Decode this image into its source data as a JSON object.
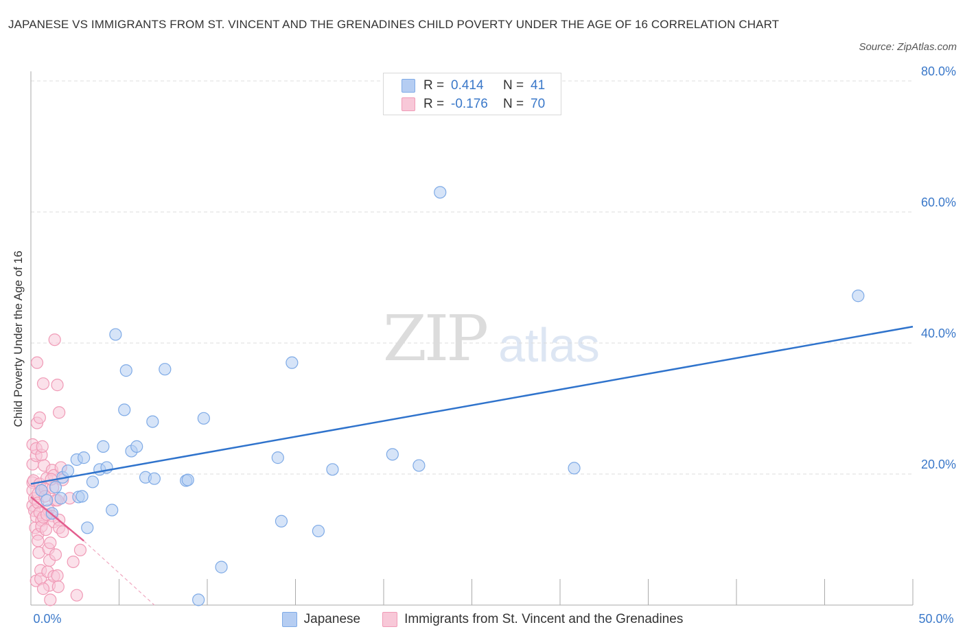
{
  "chart_data": {
    "type": "scatter",
    "title": "JAPANESE VS IMMIGRANTS FROM ST. VINCENT AND THE GRENADINES CHILD POVERTY UNDER THE AGE OF 16 CORRELATION CHART",
    "source": "Source: ZipAtlas.com",
    "xlabel": "",
    "ylabel": "Child Poverty Under the Age of 16",
    "xlim": [
      0,
      50
    ],
    "ylim": [
      0,
      80
    ],
    "x_tick_labels": [
      "0.0%",
      "50.0%"
    ],
    "y_ticks": [
      20,
      40,
      60,
      80
    ],
    "y_tick_labels": [
      "20.0%",
      "40.0%",
      "60.0%",
      "80.0%"
    ],
    "grid": true,
    "watermark": "ZIPatlas",
    "legend_position": "top-center",
    "series": [
      {
        "name": "Japanese",
        "color": "#7eaae6",
        "fill": "#b5cdf2",
        "line_color": "#2f73cc",
        "r_label": "R =",
        "r_value": "0.414",
        "n_label": "N =",
        "n_value": "41",
        "trend": {
          "x0": 0,
          "y0": 18.5,
          "x1": 50,
          "y1": 42.5
        },
        "points": [
          [
            0.6,
            17.5
          ],
          [
            0.9,
            16.0
          ],
          [
            1.2,
            14.0
          ],
          [
            1.4,
            18.0
          ],
          [
            1.7,
            16.3
          ],
          [
            1.8,
            19.5
          ],
          [
            2.1,
            20.5
          ],
          [
            2.6,
            22.2
          ],
          [
            2.7,
            16.5
          ],
          [
            3.0,
            22.5
          ],
          [
            3.2,
            11.8
          ],
          [
            3.5,
            18.8
          ],
          [
            3.9,
            20.7
          ],
          [
            4.1,
            24.2
          ],
          [
            4.3,
            21.0
          ],
          [
            4.6,
            14.5
          ],
          [
            4.8,
            41.3
          ],
          [
            5.3,
            29.8
          ],
          [
            5.4,
            35.8
          ],
          [
            5.7,
            23.5
          ],
          [
            6.0,
            24.2
          ],
          [
            6.5,
            19.5
          ],
          [
            6.9,
            28.0
          ],
          [
            7.0,
            19.3
          ],
          [
            7.6,
            36.0
          ],
          [
            8.8,
            19.0
          ],
          [
            8.9,
            19.1
          ],
          [
            9.5,
            0.8
          ],
          [
            9.8,
            28.5
          ],
          [
            10.8,
            5.8
          ],
          [
            14.0,
            22.5
          ],
          [
            14.2,
            12.8
          ],
          [
            14.8,
            37.0
          ],
          [
            16.3,
            11.3
          ],
          [
            17.1,
            20.7
          ],
          [
            20.5,
            23.0
          ],
          [
            22.0,
            21.3
          ],
          [
            23.2,
            63.0
          ],
          [
            30.8,
            20.9
          ],
          [
            46.9,
            47.2
          ],
          [
            2.9,
            16.6
          ]
        ]
      },
      {
        "name": "Immigrants from St. Vincent and the Grenadines",
        "color": "#f09ab6",
        "fill": "#f8c8d8",
        "line_color": "#e35d8e",
        "r_label": "R =",
        "r_value": "-0.176",
        "n_label": "N =",
        "n_value": "70",
        "trend": {
          "x0": 0,
          "y0": 16.5,
          "x1": 3.0,
          "y1": 9.8
        },
        "trend_dashed": {
          "x0": 3.0,
          "y0": 9.8,
          "x1": 7.0,
          "y1": 0.0
        },
        "points": [
          [
            0.1,
            21.5
          ],
          [
            0.1,
            18.7
          ],
          [
            0.1,
            17.5
          ],
          [
            0.1,
            15.2
          ],
          [
            0.1,
            24.5
          ],
          [
            0.15,
            19.0
          ],
          [
            0.2,
            16.3
          ],
          [
            0.2,
            14.4
          ],
          [
            0.25,
            11.8
          ],
          [
            0.3,
            22.8
          ],
          [
            0.3,
            23.9
          ],
          [
            0.3,
            13.5
          ],
          [
            0.3,
            3.7
          ],
          [
            0.35,
            37.0
          ],
          [
            0.35,
            27.8
          ],
          [
            0.4,
            17.0
          ],
          [
            0.4,
            15.6
          ],
          [
            0.4,
            10.8
          ],
          [
            0.4,
            9.8
          ],
          [
            0.45,
            8.0
          ],
          [
            0.5,
            28.6
          ],
          [
            0.5,
            18.5
          ],
          [
            0.5,
            14.1
          ],
          [
            0.55,
            5.3
          ],
          [
            0.55,
            4.0
          ],
          [
            0.6,
            22.9
          ],
          [
            0.6,
            17.5
          ],
          [
            0.6,
            12.9
          ],
          [
            0.6,
            12.0
          ],
          [
            0.65,
            24.2
          ],
          [
            0.7,
            33.8
          ],
          [
            0.7,
            13.4
          ],
          [
            0.75,
            21.3
          ],
          [
            0.8,
            17.8
          ],
          [
            0.8,
            16.6
          ],
          [
            0.85,
            11.5
          ],
          [
            0.9,
            19.4
          ],
          [
            0.95,
            5.1
          ],
          [
            1.0,
            14.5
          ],
          [
            1.0,
            8.6
          ],
          [
            1.05,
            6.8
          ],
          [
            1.05,
            3.0
          ],
          [
            1.1,
            9.5
          ],
          [
            1.1,
            0.8
          ],
          [
            1.2,
            20.6
          ],
          [
            1.2,
            13.6
          ],
          [
            1.25,
            17.9
          ],
          [
            1.3,
            19.8
          ],
          [
            1.3,
            12.7
          ],
          [
            1.3,
            4.4
          ],
          [
            1.35,
            40.5
          ],
          [
            1.4,
            16.0
          ],
          [
            1.4,
            7.7
          ],
          [
            1.5,
            33.6
          ],
          [
            1.5,
            16.0
          ],
          [
            1.5,
            4.5
          ],
          [
            1.55,
            2.8
          ],
          [
            1.6,
            29.4
          ],
          [
            1.6,
            13.0
          ],
          [
            1.6,
            11.8
          ],
          [
            1.7,
            21.0
          ],
          [
            1.8,
            19.1
          ],
          [
            1.8,
            11.2
          ],
          [
            2.2,
            16.3
          ],
          [
            2.4,
            6.6
          ],
          [
            2.6,
            1.5
          ],
          [
            2.8,
            8.4
          ],
          [
            0.9,
            13.8
          ],
          [
            0.7,
            2.5
          ],
          [
            1.15,
            19.2
          ]
        ]
      }
    ]
  }
}
